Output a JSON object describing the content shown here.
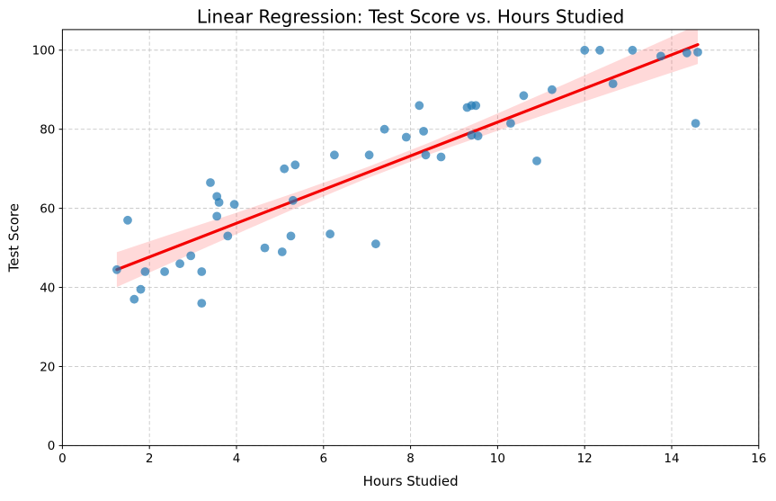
{
  "figure": {
    "background": "#ffffff"
  },
  "chart_data": {
    "type": "scatter",
    "title": "Linear Regression: Test Score vs. Hours Studied",
    "xlabel": "Hours Studied",
    "ylabel": "Test Score",
    "xlim": [
      0,
      16
    ],
    "ylim": [
      0,
      105.2
    ],
    "xticks": [
      0,
      2,
      4,
      6,
      8,
      10,
      12,
      14,
      16
    ],
    "yticks": [
      0,
      20,
      40,
      60,
      80,
      100
    ],
    "grid": true,
    "grid_color": "#c8c8c8",
    "grid_style": "dashed",
    "legend": "none",
    "series": [
      {
        "name": "observations",
        "kind": "scatter",
        "color": "#1f77b4",
        "alpha": 0.7,
        "marker_radius": 4.9,
        "points": [
          [
            1.25,
            44.5
          ],
          [
            1.5,
            57
          ],
          [
            1.65,
            37
          ],
          [
            1.8,
            39.5
          ],
          [
            1.9,
            44
          ],
          [
            2.35,
            44
          ],
          [
            2.7,
            46
          ],
          [
            2.95,
            48
          ],
          [
            3.2,
            44
          ],
          [
            3.2,
            36
          ],
          [
            3.4,
            66.5
          ],
          [
            3.55,
            63
          ],
          [
            3.6,
            61.5
          ],
          [
            3.55,
            58
          ],
          [
            3.8,
            53
          ],
          [
            3.95,
            61
          ],
          [
            4.65,
            50
          ],
          [
            5.05,
            49
          ],
          [
            5.1,
            70
          ],
          [
            5.25,
            53
          ],
          [
            5.3,
            62
          ],
          [
            5.35,
            71
          ],
          [
            6.15,
            53.5
          ],
          [
            6.25,
            73.5
          ],
          [
            7.05,
            73.5
          ],
          [
            7.2,
            51
          ],
          [
            7.4,
            80
          ],
          [
            7.9,
            78
          ],
          [
            8.2,
            86
          ],
          [
            8.3,
            79.5
          ],
          [
            8.35,
            73.5
          ],
          [
            8.7,
            73
          ],
          [
            9.3,
            85.5
          ],
          [
            9.4,
            86
          ],
          [
            9.5,
            86
          ],
          [
            9.4,
            78.5
          ],
          [
            9.55,
            78.3
          ],
          [
            10.3,
            81.5
          ],
          [
            10.6,
            88.5
          ],
          [
            10.9,
            72
          ],
          [
            11.25,
            90
          ],
          [
            12.0,
            100
          ],
          [
            12.35,
            100
          ],
          [
            12.65,
            91.5
          ],
          [
            13.1,
            100
          ],
          [
            13.75,
            98.5
          ],
          [
            14.35,
            99.3
          ],
          [
            14.6,
            99.5
          ],
          [
            14.55,
            81.5
          ]
        ]
      },
      {
        "name": "regression-line",
        "kind": "line",
        "color": "#f40000",
        "width": 3.2,
        "x": [
          1.25,
          14.6
        ],
        "y": [
          44.5,
          101.4
        ]
      },
      {
        "name": "confidence-band",
        "kind": "band",
        "color": "#ff0000",
        "alpha": 0.15,
        "x": [
          1.25,
          2.5,
          4.0,
          5.5,
          7.0,
          8.5,
          10.0,
          11.5,
          13.0,
          14.6
        ],
        "upper": [
          48.9,
          53.5,
          58.9,
          64.5,
          70.4,
          76.9,
          84.0,
          91.2,
          98.5,
          106.4
        ],
        "lower": [
          40.1,
          46.2,
          53.5,
          60.7,
          67.6,
          73.9,
          79.6,
          85.2,
          90.7,
          96.5
        ]
      }
    ]
  }
}
